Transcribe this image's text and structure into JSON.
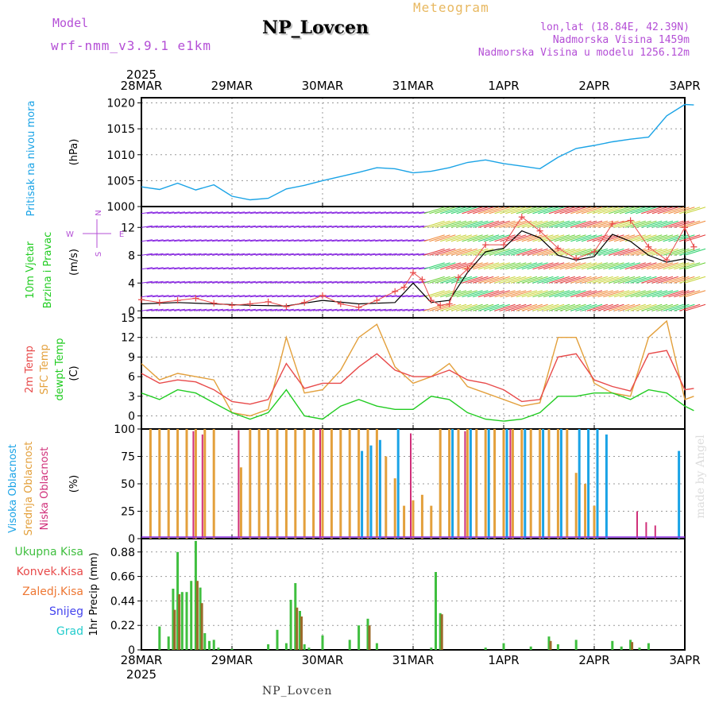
{
  "header": {
    "model_label": "Model",
    "model_name": "wrf-nmm_v3.9.1 e1km",
    "station": "NP_Lovcen",
    "product": "Meteogram",
    "coords": "lon,lat (18.84E, 42.39N)",
    "elevation": "Nadmorska Visina 1459m",
    "model_elevation": "Nadmorska Visina u modelu 1256.12m",
    "year": "2025"
  },
  "footer": {
    "station": "NP_Lovcen",
    "credit": "made by Angel"
  },
  "colors": {
    "pressure": "#1aa3e6",
    "wind_label": "#22cc22",
    "temp2m": "#e84a4a",
    "sfc_temp": "#e3a03c",
    "dewpt": "#22cc22",
    "high_cloud": "#1aa3e6",
    "mid_cloud": "#e3a03c",
    "low_cloud": "#d0307a",
    "precip_total": "#3fbf3f",
    "precip_conv": "#e84a4a",
    "precip_frz": "#ee7733",
    "snow": "#4444ee",
    "graupel": "#22cccc"
  },
  "chart_data": [
    {
      "id": "pressure",
      "type": "line",
      "ylabel_left": "Pritisak na nivou mora",
      "unit": "(hPa)",
      "x_ticks": [
        "28MAR",
        "29MAR",
        "30MAR",
        "31MAR",
        "1APR",
        "2APR",
        "3APR"
      ],
      "ylim": [
        1000,
        1021
      ],
      "yticks": [
        1000,
        1005,
        1010,
        1015,
        1020
      ],
      "grid": true,
      "series": [
        {
          "x": [
            0,
            0.2,
            0.4,
            0.6,
            0.8,
            1.0,
            1.2,
            1.4,
            1.6,
            1.8,
            2.0,
            2.2,
            2.4,
            2.6,
            2.8,
            3.0,
            3.2,
            3.4,
            3.6,
            3.8,
            4.0,
            4.2,
            4.4,
            4.6,
            4.8,
            5.0,
            5.2,
            5.4,
            5.6,
            5.8,
            6.0,
            6.1
          ],
          "values": [
            1003.8,
            1003.3,
            1004.5,
            1003.2,
            1004.2,
            1002.0,
            1001.3,
            1001.6,
            1003.4,
            1004.1,
            1005.0,
            1005.8,
            1006.6,
            1007.5,
            1007.3,
            1006.5,
            1006.8,
            1007.5,
            1008.5,
            1009.0,
            1008.3,
            1007.8,
            1007.3,
            1009.5,
            1011.2,
            1011.8,
            1012.5,
            1013.0,
            1013.4,
            1017.5,
            1019.7,
            1019.6
          ]
        }
      ]
    },
    {
      "id": "wind",
      "type": "scatter",
      "ylabel_left": [
        "10m Vjetar",
        "Brzina i Pravac"
      ],
      "unit": "(m/s)",
      "compass": [
        "N",
        "E",
        "S",
        "W"
      ],
      "ylim": [
        -1,
        15
      ],
      "yticks": [
        0,
        4,
        8,
        12
      ],
      "grid": true,
      "series": [
        {
          "name": "speed",
          "x": [
            0,
            0.2,
            0.4,
            0.6,
            0.8,
            1.0,
            1.2,
            1.4,
            1.6,
            1.8,
            2.0,
            2.2,
            2.4,
            2.6,
            2.8,
            2.9,
            3.0,
            3.1,
            3.2,
            3.3,
            3.4,
            3.5,
            3.6,
            3.8,
            4.0,
            4.2,
            4.4,
            4.6,
            4.8,
            5.0,
            5.2,
            5.4,
            5.6,
            5.8,
            6.0,
            6.1
          ],
          "values": [
            1.6,
            1.2,
            1.5,
            1.8,
            1.1,
            0.8,
            1.0,
            1.3,
            0.6,
            1.2,
            2.2,
            1.0,
            0.5,
            1.5,
            2.8,
            3.4,
            5.5,
            4.5,
            1.5,
            0.8,
            1.0,
            4.8,
            6.0,
            9.5,
            9.5,
            13.5,
            11.5,
            9.0,
            7.5,
            8.5,
            12.5,
            13.0,
            9.2,
            7.3,
            12.0,
            9.2
          ]
        },
        {
          "name": "model-speed",
          "x": [
            0,
            0.4,
            0.8,
            1.2,
            1.6,
            2.0,
            2.4,
            2.8,
            3.0,
            3.2,
            3.4,
            3.6,
            3.8,
            4.0,
            4.2,
            4.4,
            4.6,
            4.8,
            5.0,
            5.2,
            5.4,
            5.6,
            5.8,
            6.0,
            6.1
          ],
          "values": [
            1.0,
            1.2,
            1.0,
            0.8,
            0.7,
            1.5,
            1.0,
            1.2,
            4.0,
            1.2,
            1.5,
            5.5,
            8.5,
            9.0,
            11.5,
            10.5,
            8.0,
            7.3,
            7.8,
            11.0,
            10.0,
            8.0,
            7.0,
            7.5,
            7.1
          ]
        }
      ]
    },
    {
      "id": "temperature",
      "type": "line",
      "ylabel_left": [
        "2m Temp",
        "SFC Temp",
        "dewpt Temp"
      ],
      "unit": "(C)",
      "ylim": [
        -2,
        15
      ],
      "yticks": [
        0,
        3,
        6,
        9,
        12,
        15
      ],
      "grid": true,
      "series": [
        {
          "name": "2m Temp",
          "x": [
            0,
            0.2,
            0.4,
            0.6,
            0.8,
            1.0,
            1.2,
            1.4,
            1.6,
            1.8,
            2.0,
            2.2,
            2.4,
            2.6,
            2.8,
            3.0,
            3.2,
            3.4,
            3.6,
            3.8,
            4.0,
            4.2,
            4.4,
            4.6,
            4.8,
            5.0,
            5.2,
            5.4,
            5.6,
            5.8,
            6.0,
            6.1
          ],
          "values": [
            6.5,
            5.0,
            5.5,
            5.2,
            4.0,
            2.2,
            1.8,
            2.5,
            8.0,
            4.2,
            5.0,
            5.0,
            7.5,
            9.5,
            7.0,
            6.0,
            6.0,
            7.0,
            5.5,
            5.0,
            4.0,
            2.2,
            2.5,
            9.0,
            9.5,
            5.5,
            4.5,
            3.8,
            9.5,
            10.0,
            4.0,
            4.2
          ]
        },
        {
          "name": "SFC Temp",
          "x": [
            0,
            0.2,
            0.4,
            0.6,
            0.8,
            1.0,
            1.2,
            1.4,
            1.6,
            1.8,
            2.0,
            2.2,
            2.4,
            2.6,
            2.8,
            3.0,
            3.2,
            3.4,
            3.6,
            3.8,
            4.0,
            4.2,
            4.4,
            4.6,
            4.8,
            5.0,
            5.2,
            5.4,
            5.6,
            5.8,
            6.0,
            6.1
          ],
          "values": [
            8.0,
            5.5,
            6.5,
            6.0,
            5.5,
            0.5,
            0.0,
            1.0,
            12.0,
            3.5,
            4.0,
            7.0,
            12.0,
            14.0,
            7.5,
            5.0,
            6.0,
            8.0,
            4.5,
            3.5,
            2.5,
            1.5,
            2.0,
            12.0,
            12.0,
            5.0,
            3.5,
            3.0,
            12.0,
            14.5,
            2.5,
            3.0
          ]
        },
        {
          "name": "dewpt Temp",
          "x": [
            0,
            0.2,
            0.4,
            0.6,
            0.8,
            1.0,
            1.2,
            1.4,
            1.6,
            1.8,
            2.0,
            2.2,
            2.4,
            2.6,
            2.8,
            3.0,
            3.2,
            3.4,
            3.6,
            3.8,
            4.0,
            4.2,
            4.4,
            4.6,
            4.8,
            5.0,
            5.2,
            5.4,
            5.6,
            5.8,
            6.0,
            6.1
          ],
          "values": [
            3.5,
            2.5,
            4.0,
            3.5,
            2.0,
            0.5,
            -0.5,
            0.5,
            4.0,
            0.0,
            -0.5,
            1.5,
            2.5,
            1.5,
            1.0,
            1.0,
            3.0,
            2.5,
            0.5,
            -0.5,
            -0.8,
            -0.5,
            0.5,
            3.0,
            3.0,
            3.5,
            3.5,
            2.5,
            4.0,
            3.5,
            1.5,
            0.8
          ]
        }
      ]
    },
    {
      "id": "clouds",
      "type": "bar",
      "ylabel_left": [
        "Visoka Oblacnost",
        "Srednja Oblacnost",
        "Niska Oblacnost"
      ],
      "unit": "(%)",
      "ylim": [
        0,
        100
      ],
      "yticks": [
        0,
        25,
        50,
        75,
        100
      ],
      "grid": true,
      "series": [
        {
          "name": "Srednja Oblacnost",
          "x": [
            0.1,
            0.2,
            0.3,
            0.4,
            0.5,
            0.6,
            0.7,
            0.8,
            1.1,
            1.2,
            1.3,
            1.4,
            1.5,
            1.6,
            1.7,
            1.8,
            1.9,
            2.0,
            2.1,
            2.2,
            2.3,
            2.4,
            2.5,
            2.6,
            2.7,
            2.8,
            2.9,
            3.0,
            3.1,
            3.2,
            3.3,
            3.4,
            3.5,
            3.6,
            3.7,
            3.8,
            3.9,
            4.0,
            4.1,
            4.2,
            4.3,
            4.4,
            4.5,
            4.6,
            4.7,
            4.8,
            4.9,
            5.0
          ],
          "values": [
            100,
            100,
            100,
            100,
            100,
            100,
            100,
            100,
            65,
            100,
            100,
            100,
            100,
            100,
            100,
            100,
            100,
            100,
            100,
            100,
            100,
            100,
            100,
            100,
            75,
            55,
            30,
            35,
            40,
            30,
            100,
            100,
            100,
            100,
            100,
            100,
            100,
            100,
            100,
            100,
            100,
            100,
            100,
            100,
            100,
            60,
            50,
            30
          ]
        },
        {
          "name": "Visoka Oblacnost",
          "x": [
            2.4,
            2.5,
            2.6,
            2.8,
            3.4,
            3.6,
            3.8,
            4.0,
            4.2,
            4.4,
            4.6,
            4.8,
            4.9,
            5.0,
            5.1,
            5.9
          ],
          "values": [
            80,
            85,
            90,
            100,
            100,
            100,
            100,
            100,
            100,
            100,
            100,
            100,
            100,
            100,
            95,
            80
          ]
        },
        {
          "name": "Niska Oblacnost",
          "x": [
            0.6,
            0.7,
            1.1,
            2.0,
            3.0,
            3.6,
            4.1,
            5.5,
            5.6,
            5.7
          ],
          "values": [
            98,
            95,
            99,
            100,
            96,
            98,
            100,
            25,
            15,
            12
          ]
        }
      ]
    },
    {
      "id": "precip",
      "type": "bar",
      "ylabel_left": [
        "Ukupna Kisa",
        "Konvek.Kisa",
        "Zaledj.Kisa",
        "Snijeg",
        "Grad"
      ],
      "unit": "1hr Precip (mm)",
      "ylim": [
        0,
        1.0
      ],
      "yticks": [
        0,
        0.22,
        0.44,
        0.66,
        0.88
      ],
      "grid": true,
      "series": [
        {
          "name": "Ukupna Kisa",
          "x": [
            0.2,
            0.3,
            0.35,
            0.4,
            0.45,
            0.5,
            0.55,
            0.6,
            0.65,
            0.7,
            0.75,
            0.8,
            0.85,
            1.0,
            1.4,
            1.5,
            1.6,
            1.65,
            1.7,
            1.75,
            1.8,
            1.85,
            2.0,
            2.3,
            2.4,
            2.5,
            2.6,
            3.2,
            3.25,
            3.3,
            3.8,
            4.0,
            4.3,
            4.5,
            4.6,
            4.8,
            5.2,
            5.3,
            5.4,
            5.5,
            5.6
          ],
          "values": [
            0.21,
            0.12,
            0.55,
            0.88,
            0.52,
            0.52,
            0.62,
            0.98,
            0.56,
            0.15,
            0.08,
            0.09,
            0.02,
            0.01,
            0.05,
            0.18,
            0.06,
            0.45,
            0.6,
            0.35,
            0.05,
            0.02,
            0.13,
            0.09,
            0.22,
            0.28,
            0.06,
            0.02,
            0.7,
            0.33,
            0.02,
            0.06,
            0.03,
            0.12,
            0.05,
            0.09,
            0.08,
            0.03,
            0.09,
            0.02,
            0.06
          ]
        },
        {
          "name": "Konvek.Kisa",
          "x": [
            0.35,
            0.4,
            0.6,
            0.65,
            1.7,
            1.75,
            2.5,
            3.3,
            4.5,
            5.4
          ],
          "values": [
            0.36,
            0.5,
            0.62,
            0.42,
            0.38,
            0.3,
            0.22,
            0.32,
            0.08,
            0.07
          ]
        }
      ]
    }
  ]
}
